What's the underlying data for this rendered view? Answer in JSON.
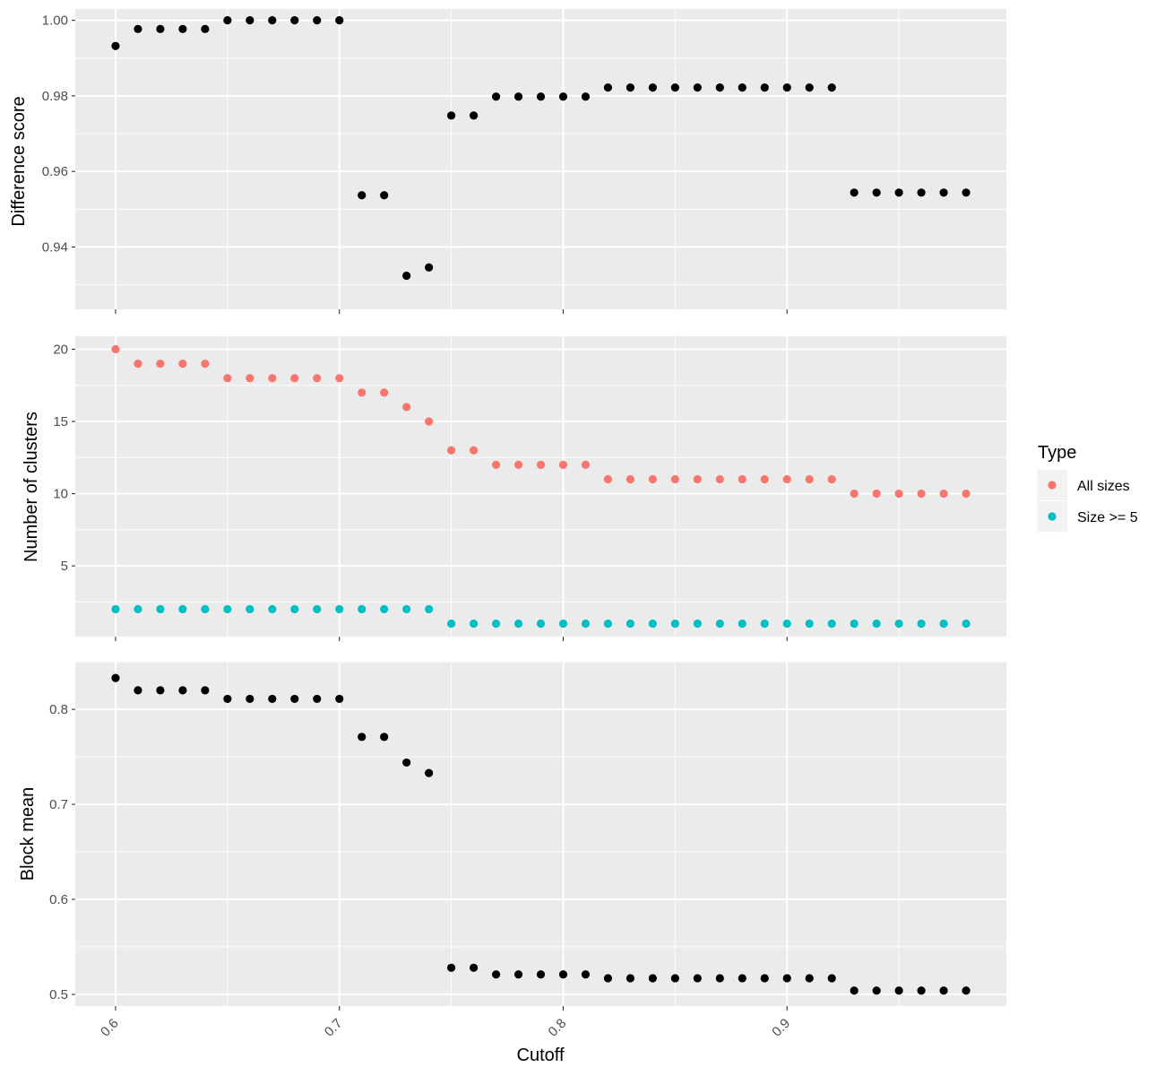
{
  "chart_data": [
    {
      "type": "scatter",
      "ylabel": "Difference score",
      "xlim": [
        0.582,
        0.998
      ],
      "ylim": [
        0.9235,
        1.003
      ],
      "y_ticks": [
        0.94,
        0.96,
        0.98,
        1.0
      ],
      "y_tick_labels": [
        "0.94",
        "0.96",
        "0.98",
        "1.00"
      ],
      "x_ticks": [
        0.6,
        0.7,
        0.8,
        0.9
      ],
      "color": "#000000",
      "series": [
        {
          "x": [
            0.6,
            0.61,
            0.62,
            0.63,
            0.64,
            0.65,
            0.66,
            0.67,
            0.68,
            0.69,
            0.7,
            0.71,
            0.72,
            0.73,
            0.74,
            0.75,
            0.76,
            0.77,
            0.78,
            0.79,
            0.8,
            0.81,
            0.82,
            0.83,
            0.84,
            0.85,
            0.86,
            0.87,
            0.88,
            0.89,
            0.9,
            0.91,
            0.92,
            0.93,
            0.94,
            0.95,
            0.96,
            0.97,
            0.98
          ],
          "values": [
            0.9932,
            0.9977,
            0.9977,
            0.9977,
            0.9977,
            1.0,
            1.0,
            1.0,
            1.0,
            1.0,
            1.0,
            0.9537,
            0.9537,
            0.9324,
            0.9346,
            0.9748,
            0.9748,
            0.9798,
            0.9798,
            0.9798,
            0.9798,
            0.9798,
            0.9822,
            0.9822,
            0.9822,
            0.9822,
            0.9822,
            0.9822,
            0.9822,
            0.9822,
            0.9822,
            0.9822,
            0.9822,
            0.9544,
            0.9544,
            0.9544,
            0.9544,
            0.9544,
            0.9544
          ]
        }
      ]
    },
    {
      "type": "scatter",
      "ylabel": "Number of clusters",
      "xlim": [
        0.582,
        0.998
      ],
      "ylim": [
        0.1,
        20.9
      ],
      "y_ticks": [
        5,
        10,
        15,
        20
      ],
      "y_tick_labels": [
        "5",
        "10",
        "15",
        "20"
      ],
      "x_ticks": [
        0.6,
        0.7,
        0.8,
        0.9
      ],
      "legend": {
        "title": "Type",
        "position": "right"
      },
      "series": [
        {
          "name": "All sizes",
          "color": "#F8766D",
          "x": [
            0.6,
            0.61,
            0.62,
            0.63,
            0.64,
            0.65,
            0.66,
            0.67,
            0.68,
            0.69,
            0.7,
            0.71,
            0.72,
            0.73,
            0.74,
            0.75,
            0.76,
            0.77,
            0.78,
            0.79,
            0.8,
            0.81,
            0.82,
            0.83,
            0.84,
            0.85,
            0.86,
            0.87,
            0.88,
            0.89,
            0.9,
            0.91,
            0.92,
            0.93,
            0.94,
            0.95,
            0.96,
            0.97,
            0.98
          ],
          "values": [
            20,
            19,
            19,
            19,
            19,
            18,
            18,
            18,
            18,
            18,
            18,
            17,
            17,
            16,
            15,
            13,
            13,
            12,
            12,
            12,
            12,
            12,
            11,
            11,
            11,
            11,
            11,
            11,
            11,
            11,
            11,
            11,
            11,
            10,
            10,
            10,
            10,
            10,
            10
          ]
        },
        {
          "name": "Size >= 5",
          "color": "#00BFC4",
          "x": [
            0.6,
            0.61,
            0.62,
            0.63,
            0.64,
            0.65,
            0.66,
            0.67,
            0.68,
            0.69,
            0.7,
            0.71,
            0.72,
            0.73,
            0.74,
            0.75,
            0.76,
            0.77,
            0.78,
            0.79,
            0.8,
            0.81,
            0.82,
            0.83,
            0.84,
            0.85,
            0.86,
            0.87,
            0.88,
            0.89,
            0.9,
            0.91,
            0.92,
            0.93,
            0.94,
            0.95,
            0.96,
            0.97,
            0.98
          ],
          "values": [
            2,
            2,
            2,
            2,
            2,
            2,
            2,
            2,
            2,
            2,
            2,
            2,
            2,
            2,
            2,
            1,
            1,
            1,
            1,
            1,
            1,
            1,
            1,
            1,
            1,
            1,
            1,
            1,
            1,
            1,
            1,
            1,
            1,
            1,
            1,
            1,
            1,
            1,
            1
          ]
        }
      ]
    },
    {
      "type": "scatter",
      "ylabel": "Block mean",
      "xlabel": "Cutoff",
      "xlim": [
        0.582,
        0.998
      ],
      "ylim": [
        0.4877,
        0.8501
      ],
      "y_ticks": [
        0.5,
        0.6,
        0.7,
        0.8
      ],
      "y_tick_labels": [
        "0.5",
        "0.6",
        "0.7",
        "0.8"
      ],
      "x_ticks": [
        0.6,
        0.7,
        0.8,
        0.9
      ],
      "x_tick_labels": [
        "0.6",
        "0.7",
        "0.8",
        "0.9"
      ],
      "color": "#000000",
      "series": [
        {
          "x": [
            0.6,
            0.61,
            0.62,
            0.63,
            0.64,
            0.65,
            0.66,
            0.67,
            0.68,
            0.69,
            0.7,
            0.71,
            0.72,
            0.73,
            0.74,
            0.75,
            0.76,
            0.77,
            0.78,
            0.79,
            0.8,
            0.81,
            0.82,
            0.83,
            0.84,
            0.85,
            0.86,
            0.87,
            0.88,
            0.89,
            0.9,
            0.91,
            0.92,
            0.93,
            0.94,
            0.95,
            0.96,
            0.97,
            0.98
          ],
          "values": [
            0.833,
            0.82,
            0.82,
            0.82,
            0.82,
            0.811,
            0.811,
            0.811,
            0.811,
            0.811,
            0.811,
            0.771,
            0.771,
            0.744,
            0.733,
            0.528,
            0.528,
            0.521,
            0.521,
            0.521,
            0.521,
            0.521,
            0.517,
            0.517,
            0.517,
            0.517,
            0.517,
            0.517,
            0.517,
            0.517,
            0.517,
            0.517,
            0.517,
            0.504,
            0.504,
            0.504,
            0.504,
            0.504,
            0.504
          ]
        }
      ]
    }
  ],
  "colors": {
    "panel_background": "#EBEBEB",
    "grid_line": "#FFFFFF",
    "tick_text": "#4D4D4D"
  }
}
